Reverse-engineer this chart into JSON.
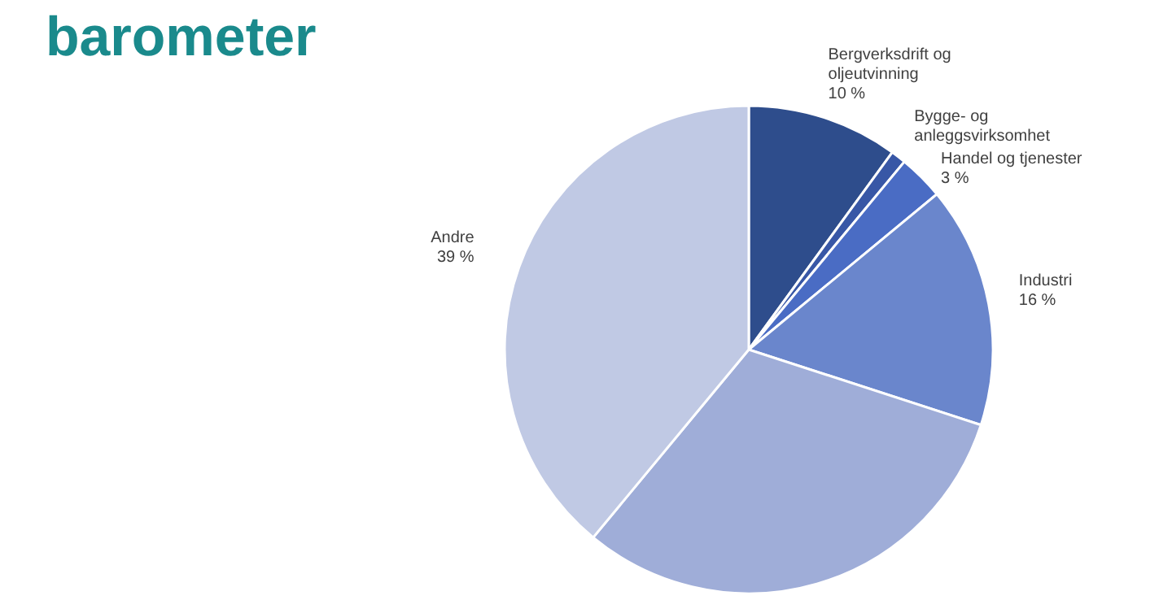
{
  "chart_data": {
    "type": "pie",
    "title": "barometer",
    "categories": [
      "Bergverksdrift og oljeutvinning",
      "Bygge- og anleggsvirksomhet",
      "Handel og tjenester",
      "Industri",
      null,
      "Andre"
    ],
    "values": [
      10,
      1,
      3,
      16,
      31,
      39
    ],
    "value_labels": [
      "10 %",
      null,
      "3 %",
      "16 %",
      null,
      "39 %"
    ],
    "colors": [
      "#2e4d8c",
      "#3857a6",
      "#4a6cc4",
      "#6a86cc",
      "#9fadd8",
      "#c0c9e4"
    ],
    "legend": false
  }
}
